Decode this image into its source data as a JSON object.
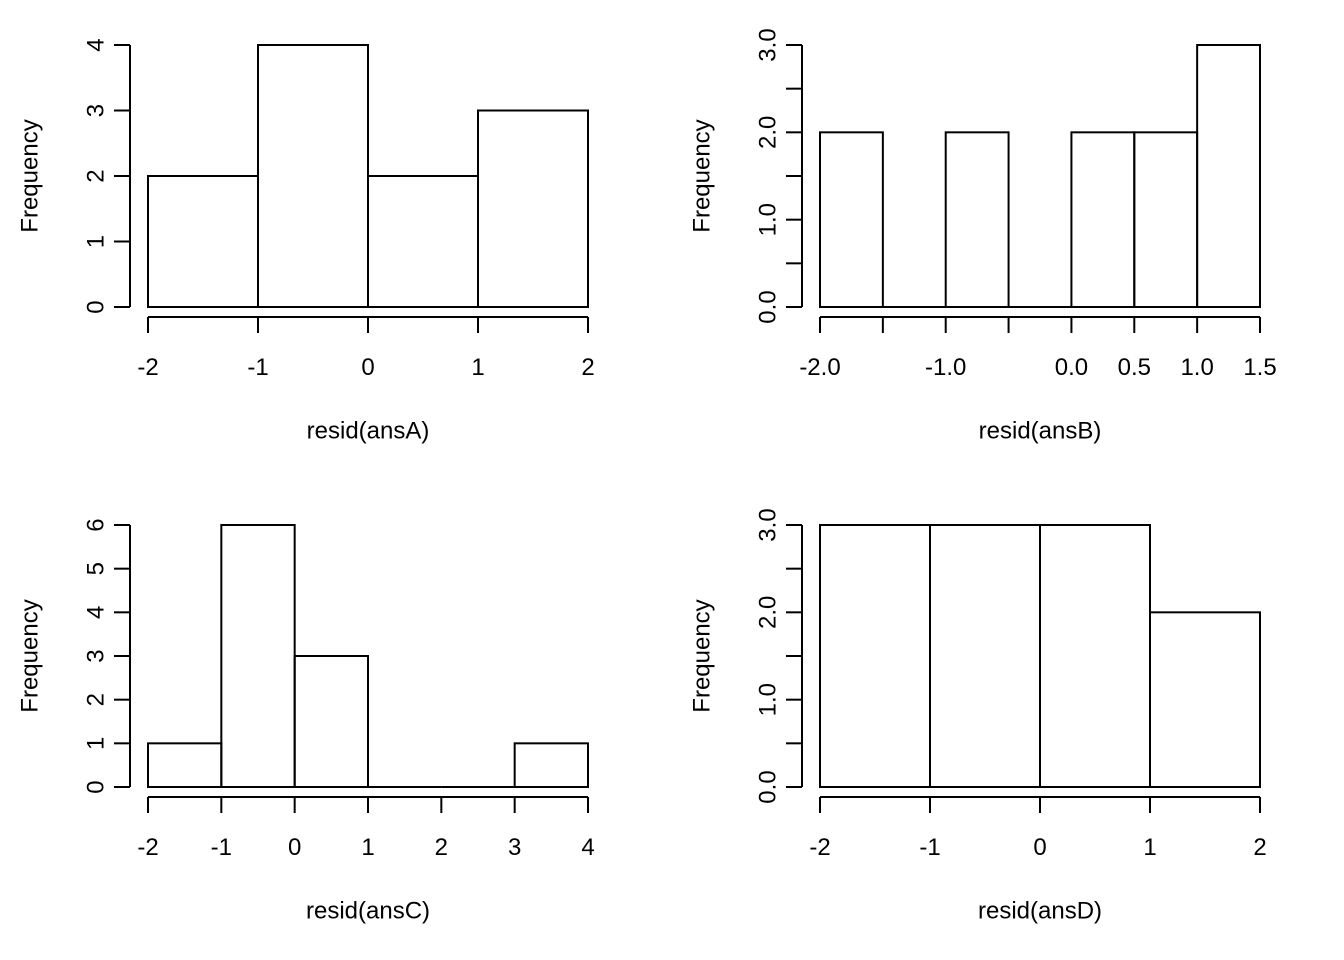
{
  "chart_data": [
    {
      "type": "histogram",
      "title": "",
      "xlabel": "resid(ansA)",
      "ylabel": "Frequency",
      "bins": [
        {
          "x0": -2,
          "x1": -1,
          "count": 2
        },
        {
          "x0": -1,
          "x1": 0,
          "count": 4
        },
        {
          "x0": 0,
          "x1": 1,
          "count": 2
        },
        {
          "x0": 1,
          "x1": 2,
          "count": 3
        }
      ],
      "xlim": [
        -2,
        2
      ],
      "ylim": [
        0,
        4
      ],
      "x_ticks": [
        -2,
        -1,
        0,
        1,
        2
      ],
      "x_tick_labels": [
        "-2",
        "-1",
        "0",
        "1",
        "2"
      ],
      "y_ticks": [
        0,
        1,
        2,
        3,
        4
      ],
      "y_tick_labels": [
        "0",
        "1",
        "2",
        "3",
        "4"
      ],
      "grid": false
    },
    {
      "type": "histogram",
      "title": "",
      "xlabel": "resid(ansB)",
      "ylabel": "Frequency",
      "bins": [
        {
          "x0": -2.0,
          "x1": -1.5,
          "count": 2
        },
        {
          "x0": -1.5,
          "x1": -1.0,
          "count": 0
        },
        {
          "x0": -1.0,
          "x1": -0.5,
          "count": 2
        },
        {
          "x0": -0.5,
          "x1": 0.0,
          "count": 0
        },
        {
          "x0": 0.0,
          "x1": 0.5,
          "count": 2
        },
        {
          "x0": 0.5,
          "x1": 1.0,
          "count": 2
        },
        {
          "x0": 1.0,
          "x1": 1.5,
          "count": 3
        }
      ],
      "xlim": [
        -2.0,
        1.5
      ],
      "ylim": [
        0,
        3
      ],
      "x_ticks": [
        -2.0,
        -1.5,
        -1.0,
        -0.5,
        0.0,
        0.5,
        1.0,
        1.5
      ],
      "x_tick_labels": [
        "-2.0",
        "",
        "-1.0",
        "",
        "0.0",
        "0.5",
        "1.0",
        "1.5"
      ],
      "y_ticks": [
        0,
        0.5,
        1.0,
        1.5,
        2.0,
        2.5,
        3.0
      ],
      "y_tick_labels": [
        "0.0",
        "",
        "1.0",
        "",
        "2.0",
        "",
        "3.0"
      ],
      "grid": false
    },
    {
      "type": "histogram",
      "title": "",
      "xlabel": "resid(ansC)",
      "ylabel": "Frequency",
      "bins": [
        {
          "x0": -2,
          "x1": -1,
          "count": 1
        },
        {
          "x0": -1,
          "x1": 0,
          "count": 6
        },
        {
          "x0": 0,
          "x1": 1,
          "count": 3
        },
        {
          "x0": 1,
          "x1": 2,
          "count": 0
        },
        {
          "x0": 2,
          "x1": 3,
          "count": 0
        },
        {
          "x0": 3,
          "x1": 4,
          "count": 1
        }
      ],
      "xlim": [
        -2,
        4
      ],
      "ylim": [
        0,
        6
      ],
      "x_ticks": [
        -2,
        -1,
        0,
        1,
        2,
        3,
        4
      ],
      "x_tick_labels": [
        "-2",
        "-1",
        "0",
        "1",
        "2",
        "3",
        "4"
      ],
      "y_ticks": [
        0,
        1,
        2,
        3,
        4,
        5,
        6
      ],
      "y_tick_labels": [
        "0",
        "1",
        "2",
        "3",
        "4",
        "5",
        "6"
      ],
      "grid": false
    },
    {
      "type": "histogram",
      "title": "",
      "xlabel": "resid(ansD)",
      "ylabel": "Frequency",
      "bins": [
        {
          "x0": -2,
          "x1": -1,
          "count": 3
        },
        {
          "x0": -1,
          "x1": 0,
          "count": 3
        },
        {
          "x0": 0,
          "x1": 1,
          "count": 3
        },
        {
          "x0": 1,
          "x1": 2,
          "count": 2
        }
      ],
      "xlim": [
        -2,
        2
      ],
      "ylim": [
        0,
        3
      ],
      "x_ticks": [
        -2,
        -1,
        0,
        1,
        2
      ],
      "x_tick_labels": [
        "-2",
        "-1",
        "0",
        "1",
        "2"
      ],
      "y_ticks": [
        0,
        0.5,
        1.0,
        1.5,
        2.0,
        2.5,
        3.0
      ],
      "y_tick_labels": [
        "0.0",
        "",
        "1.0",
        "",
        "2.0",
        "",
        "3.0"
      ],
      "grid": false
    }
  ]
}
